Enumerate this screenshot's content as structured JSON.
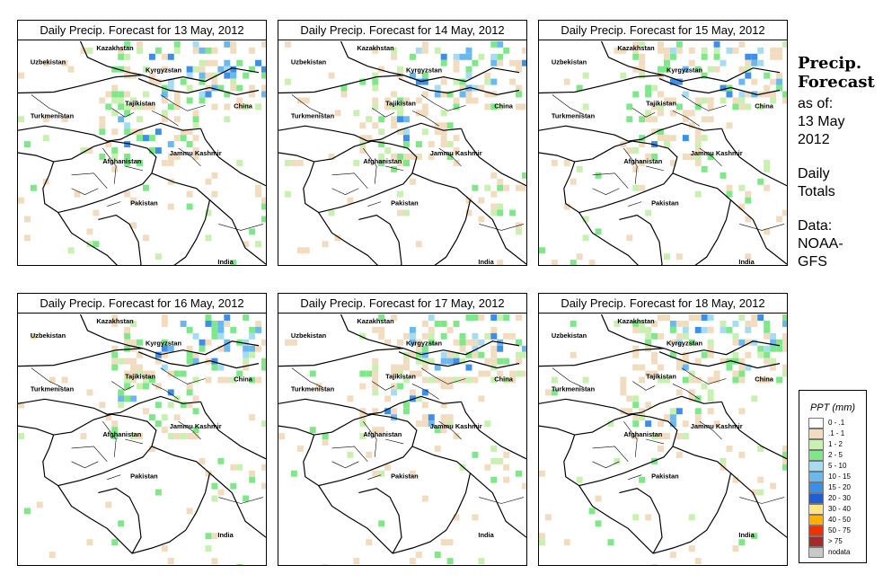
{
  "panels": [
    {
      "title": "Daily Precip. Forecast for  13 May, 2012"
    },
    {
      "title": "Daily Precip. Forecast for  14 May, 2012"
    },
    {
      "title": "Daily Precip. Forecast for  15 May, 2012"
    },
    {
      "title": "Daily Precip. Forecast for  16 May, 2012"
    },
    {
      "title": "Daily Precip. Forecast for  17 May, 2012"
    },
    {
      "title": "Daily Precip. Forecast for  18 May, 2012"
    }
  ],
  "map_labels": {
    "kazakhstan": "Kazakhstan",
    "uzbekistan": "Uzbekistan",
    "kyrgyzstan": "Kyrgyzstan",
    "tajikistan": "Tajikistan",
    "china": "China",
    "turkmenistan": "Turkmenistan",
    "jammu_kashmir": "Jammu Kashmir",
    "afghanistan": "Afghanistan",
    "pakistan": "Pakistan",
    "india": "India"
  },
  "sidebar": {
    "title_line1": "Precip.",
    "title_line2": "Forecast",
    "asof_line1": "as of:",
    "asof_line2": "13 May",
    "asof_line3": "2012",
    "totals_line1": "Daily",
    "totals_line2": "Totals",
    "data_line1": "Data:",
    "data_line2": "NOAA-",
    "data_line3": "GFS"
  },
  "legend": {
    "title": "PPT (mm)",
    "items": [
      {
        "label": "0 - .1",
        "color": "#ffffff"
      },
      {
        "label": ".1 - 1",
        "color": "#f2dcbf"
      },
      {
        "label": "1 - 2",
        "color": "#c8f0b0"
      },
      {
        "label": "2 - 5",
        "color": "#7ee889"
      },
      {
        "label": "5 - 10",
        "color": "#a6dcf2"
      },
      {
        "label": "10 - 15",
        "color": "#6ab8f0"
      },
      {
        "label": "15 - 20",
        "color": "#3c8ee8"
      },
      {
        "label": "20 - 30",
        "color": "#1f5fd6"
      },
      {
        "label": "30 - 40",
        "color": "#ffe680"
      },
      {
        "label": "40 - 50",
        "color": "#ffb000"
      },
      {
        "label": "50 - 75",
        "color": "#ee3300"
      },
      {
        "label": "> 75",
        "color": "#a52a2a"
      },
      {
        "label": "nodata",
        "color": "#c8c8c8"
      }
    ]
  }
}
